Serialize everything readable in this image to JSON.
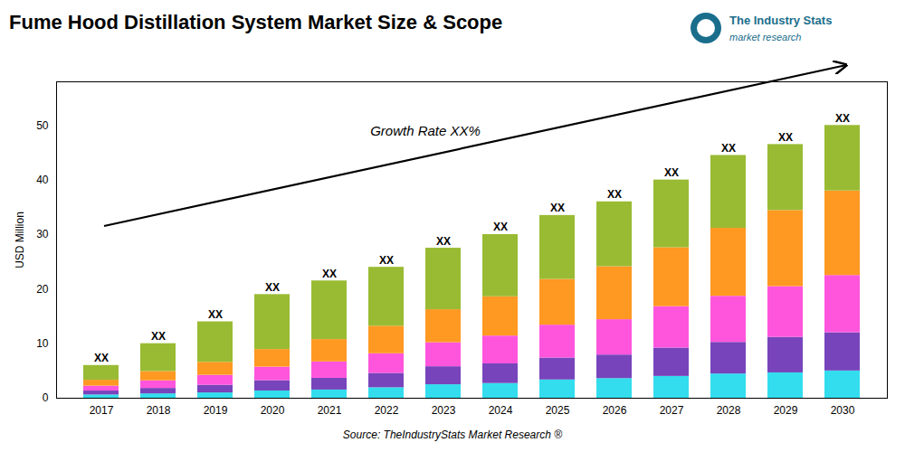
{
  "chart_data": {
    "type": "bar",
    "stacked": true,
    "title": "Fume Hood Distillation System Market Size & Scope",
    "ylabel": "USD Million",
    "categories": [
      "2017",
      "2018",
      "2019",
      "2020",
      "2021",
      "2022",
      "2023",
      "2024",
      "2025",
      "2026",
      "2027",
      "2028",
      "2029",
      "2030"
    ],
    "series": [
      {
        "color": "#33ddee",
        "values": [
          0.6,
          0.8,
          0.98,
          1.33,
          1.505,
          1.92,
          2.475,
          2.7,
          3.35,
          3.6,
          4,
          4.45,
          4.65,
          5
        ]
      },
      {
        "color": "#7744bb",
        "values": [
          0.72,
          1.0,
          1.4,
          1.9,
          2.15,
          2.64,
          3.3,
          3.6,
          4.02,
          4.32,
          5.2,
          5.785,
          6.51,
          7
        ]
      },
      {
        "color": "#ff55dd",
        "values": [
          0.9,
          1.4,
          1.82,
          2.47,
          3.01,
          3.6,
          4.4,
          5.1,
          6.03,
          6.48,
          7.6,
          8.455,
          9.3,
          10.5
        ]
      },
      {
        "color": "#ff9922",
        "values": [
          1.08,
          1.7,
          2.38,
          3.23,
          4.085,
          5.04,
          6.05,
          7.2,
          8.375,
          9.72,
          10.8,
          12.46,
          13.95,
          15.5
        ]
      },
      {
        "color": "#99bb33",
        "values": [
          2.7,
          5.1,
          7.42,
          10.07,
          10.75,
          10.8,
          11.275,
          11.4,
          11.725,
          11.88,
          12.4,
          13.35,
          12.09,
          12
        ]
      }
    ],
    "top_labels": [
      "XX",
      "XX",
      "XX",
      "XX",
      "XX",
      "XX",
      "XX",
      "XX",
      "XX",
      "XX",
      "XX",
      "XX",
      "XX",
      "XX"
    ],
    "ylim": [
      0,
      58
    ],
    "yticks": [
      0,
      10,
      20,
      30,
      40,
      50
    ],
    "grid": false,
    "annotations": [
      "Growth Rate XX%"
    ],
    "source": "Source: TheIndustryStats Market Research ®",
    "logo": {
      "texts": [
        "The Industry Stats",
        "market research"
      ],
      "color": "#1a6e8c"
    }
  }
}
